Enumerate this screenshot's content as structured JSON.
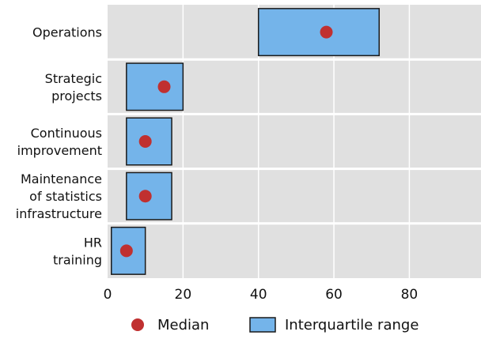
{
  "chart_data": {
    "type": "box-range",
    "categories": [
      [
        "Operations"
      ],
      [
        "Strategic",
        "projects"
      ],
      [
        "Continuous",
        "improvement"
      ],
      [
        "Maintenance",
        "of statistics",
        "infrastructure"
      ],
      [
        "HR",
        "training"
      ]
    ],
    "series": [
      {
        "name": "Interquartile range",
        "values": [
          [
            40,
            72
          ],
          [
            5,
            20
          ],
          [
            5,
            17
          ],
          [
            5,
            17
          ],
          [
            1,
            10
          ]
        ]
      },
      {
        "name": "Median",
        "values": [
          58,
          15,
          10,
          10,
          5
        ]
      }
    ],
    "xticks": [
      0,
      20,
      40,
      60,
      80
    ],
    "xlim": [
      0,
      99
    ],
    "grid": true,
    "legend_position": "bottom",
    "colors": {
      "plot_bg": "#e0e0e0",
      "grid": "#ffffff",
      "box_fill": "#74b4ea",
      "box_stroke": "#1a1a1a",
      "median": "#c03030"
    }
  }
}
